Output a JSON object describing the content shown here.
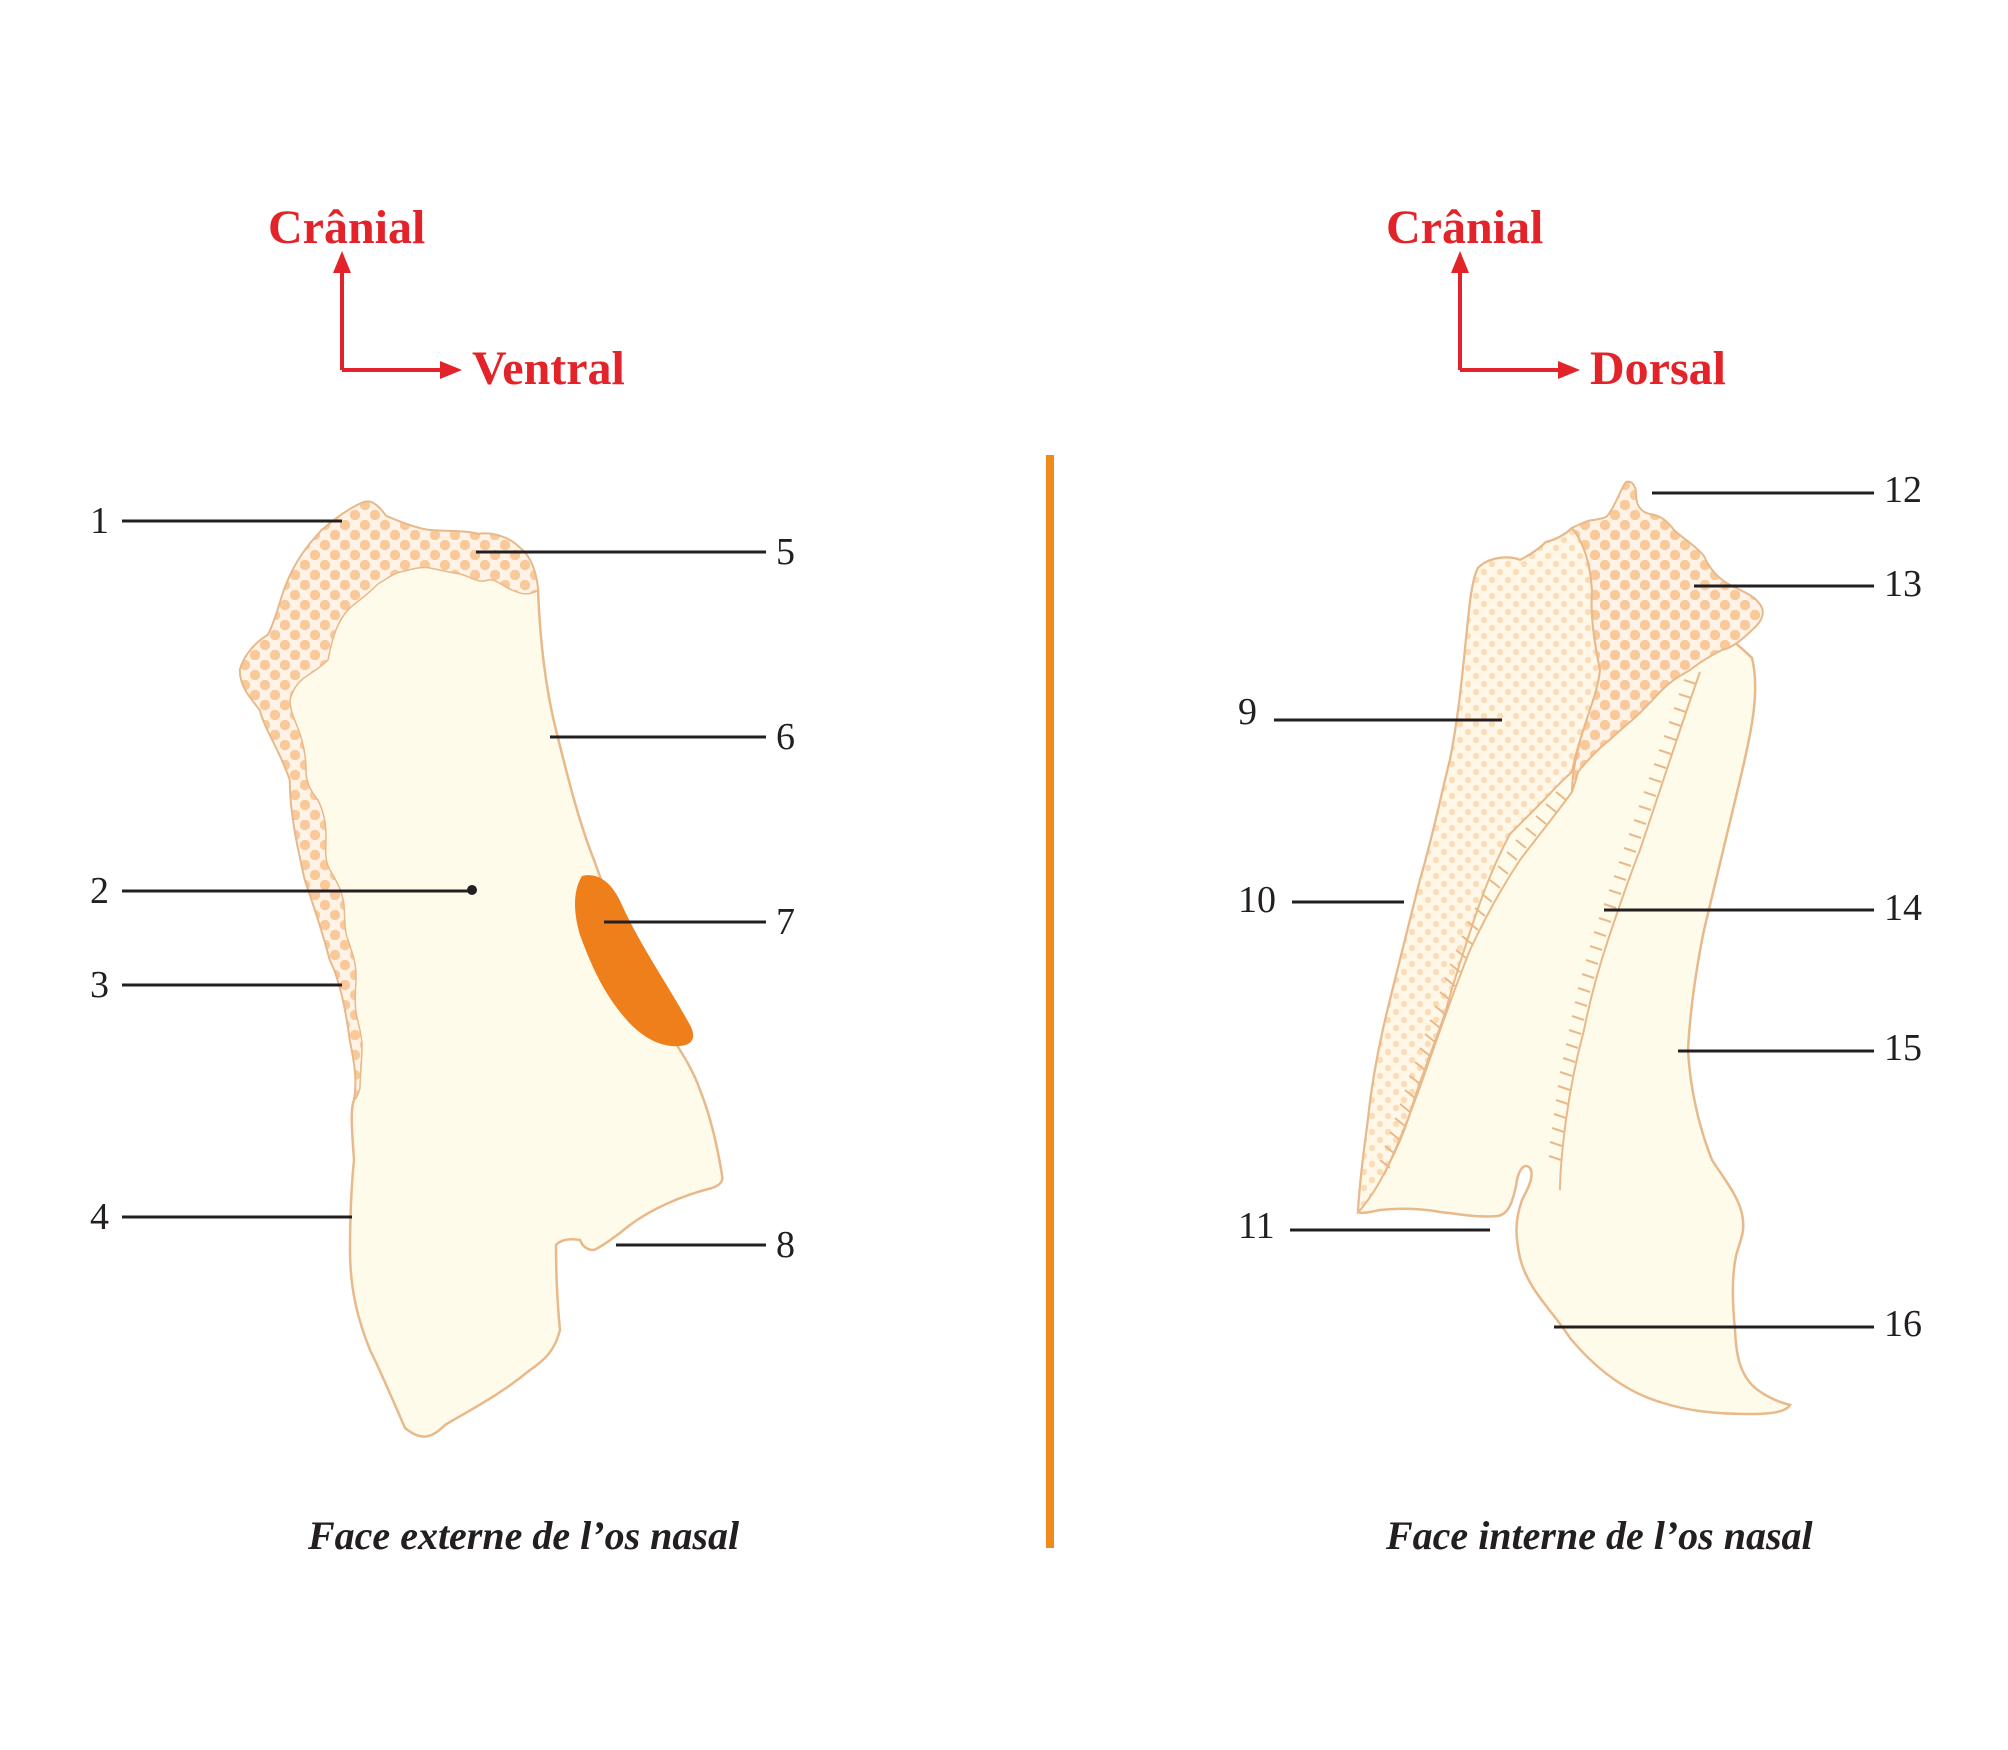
{
  "left_panel": {
    "orientation": {
      "up": "Crânial",
      "right": "Ventral"
    },
    "caption": "Face externe de l’os nasal",
    "labels": [
      "1",
      "2",
      "3",
      "4",
      "5",
      "6",
      "7",
      "8"
    ]
  },
  "right_panel": {
    "orientation": {
      "up": "Crânial",
      "right": "Dorsal"
    },
    "caption": "Face interne de l’os nasal",
    "labels": [
      "9",
      "10",
      "11",
      "12",
      "13",
      "14",
      "15",
      "16"
    ]
  },
  "colors": {
    "orientation": "#e2232a",
    "bone_fill": "#fffbea",
    "bone_outline": "#e8b98a",
    "suture_pattern": "#f9c99a",
    "foramen": "#ef7f1a",
    "divider": "#f08a1c"
  }
}
